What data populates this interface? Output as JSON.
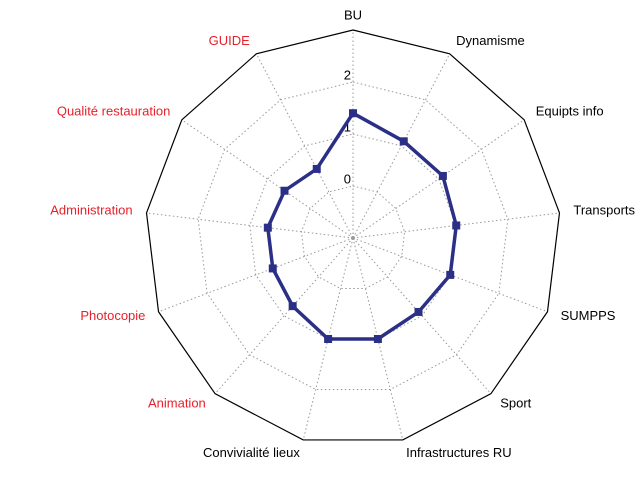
{
  "chart_data": {
    "type": "radar",
    "categories": [
      "BU",
      "Dynamisme",
      "Equipts info",
      "Transports",
      "SUMPPS",
      "Sport",
      "Infrastructures RU",
      "Convivialité lieux",
      "Animation",
      "Photocopie",
      "Administration",
      "Qualité restauration",
      "GUIDE"
    ],
    "category_colors": [
      "#000000",
      "#000000",
      "#000000",
      "#000000",
      "#000000",
      "#000000",
      "#000000",
      "#000000",
      "#e8202a",
      "#e8202a",
      "#e8202a",
      "#e8202a",
      "#e8202a"
    ],
    "series": [
      {
        "color": "#2b2f86",
        "values": [
          1.4,
          1.1,
          1.1,
          1.0,
          1.0,
          0.9,
          1.0,
          1.0,
          0.75,
          0.65,
          0.65,
          0.6,
          0.5
        ]
      }
    ],
    "rlim": [
      -1,
      3
    ],
    "rticks": [
      0,
      1,
      2
    ],
    "grid": true
  }
}
